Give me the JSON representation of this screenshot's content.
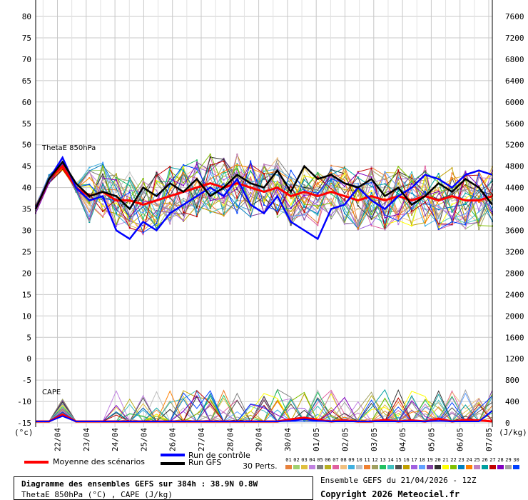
{
  "chart_data": {
    "type": "line",
    "top_panel": {
      "label": "ThetaE 850hPa",
      "yticks": [
        80,
        75,
        70,
        65,
        60,
        55,
        50,
        45,
        40,
        35,
        30,
        25,
        20,
        15,
        10,
        5,
        0,
        -5,
        -10,
        -15
      ],
      "ylim": [
        -15,
        80
      ]
    },
    "bottom_panel": {
      "label": "CAPE"
    },
    "right_axis_ticks": [
      7600,
      7200,
      6800,
      6400,
      6000,
      5600,
      5200,
      4800,
      4400,
      4000,
      3600,
      3200,
      2800,
      2400,
      2000,
      1600,
      1200,
      800,
      400,
      0
    ],
    "left_unit": "(°c)",
    "right_unit": "(J/kg)",
    "x_labels": [
      "22/04",
      "23/04",
      "24/04",
      "25/04",
      "26/04",
      "27/04",
      "28/04",
      "29/04",
      "30/04",
      "01/05",
      "02/05",
      "03/05",
      "04/05",
      "05/05",
      "06/05",
      "07/05"
    ],
    "series": [
      {
        "name": "Moyenne des scénarios",
        "color": "#ff0000",
        "values": [
          35,
          42,
          45,
          40,
          38,
          39,
          37,
          37,
          36,
          37,
          38,
          39,
          40,
          41,
          40,
          41,
          40,
          39,
          40,
          38,
          39,
          38,
          39,
          38,
          37,
          38,
          37,
          38,
          37,
          38,
          37,
          38,
          37,
          37,
          38
        ]
      },
      {
        "name": "Run de contrôle",
        "color": "#0000ff",
        "values": [
          35,
          42,
          47,
          40,
          37,
          38,
          30,
          28,
          32,
          30,
          34,
          36,
          38,
          40,
          38,
          42,
          36,
          34,
          38,
          32,
          30,
          28,
          35,
          36,
          40,
          37,
          35,
          38,
          40,
          43,
          42,
          40,
          43,
          44,
          43
        ]
      },
      {
        "name": "Run GFS",
        "color": "#000000",
        "values": [
          35,
          42,
          46,
          41,
          38,
          39,
          38,
          35,
          40,
          38,
          41,
          39,
          42,
          38,
          40,
          43,
          41,
          40,
          44,
          39,
          45,
          42,
          43,
          41,
          40,
          42,
          38,
          40,
          36,
          38,
          41,
          39,
          42,
          40,
          36
        ]
      }
    ],
    "cape_mean": [
      0,
      0,
      130,
      0,
      0,
      0,
      0,
      0,
      0,
      0,
      0,
      0,
      0,
      0,
      0,
      0,
      0,
      0,
      0,
      40,
      70,
      30,
      0,
      20,
      0,
      0,
      30,
      0,
      20,
      0,
      50,
      0,
      30,
      20,
      0
    ],
    "cape_control": [
      0,
      0,
      100,
      0,
      0,
      0,
      0,
      0,
      0,
      0,
      0,
      0,
      0,
      0,
      0,
      0,
      0,
      0,
      0,
      10,
      40,
      10,
      0,
      0,
      0,
      0,
      0,
      0,
      0,
      0,
      10,
      0,
      0,
      0,
      200
    ]
  },
  "legend": {
    "mean": "Moyenne des scénarios",
    "control": "Run de contrôle",
    "gfs": "Run GFS",
    "perts": "30 Perts.",
    "pert_numbers": [
      "01",
      "02",
      "03",
      "04",
      "05",
      "06",
      "07",
      "08",
      "09",
      "10",
      "11",
      "12",
      "13",
      "14",
      "15",
      "16",
      "17",
      "18",
      "19",
      "20",
      "21",
      "22",
      "23",
      "24",
      "25",
      "26",
      "27",
      "28",
      "29",
      "30"
    ],
    "pert_colors": [
      "#e8813c",
      "#a0d070",
      "#e0c040",
      "#c080e0",
      "#808080",
      "#b8b020",
      "#e060a0",
      "#f0c080",
      "#40b0e0",
      "#c0c0c0",
      "#f08030",
      "#a0a060",
      "#20c060",
      "#40c0c0",
      "#505050",
      "#c0a000",
      "#a060e0",
      "#60a0ff",
      "#8040a0",
      "#303030",
      "#ffff00",
      "#80c000",
      "#0080c0",
      "#ff8000",
      "#c080c0",
      "#00a0a0",
      "#c00000",
      "#8000c0",
      "#a0a0a0",
      "#0040ff"
    ]
  },
  "info": {
    "title": "Diagramme des ensembles GEFS sur 384h : 38.9N 0.8W",
    "subtitle": "ThetaE 850hPa (°C) , CAPE (J/kg)",
    "run": "Ensemble GEFS du 21/04/2026 - 12Z",
    "copyright": "Copyright 2026 Meteociel.fr"
  }
}
